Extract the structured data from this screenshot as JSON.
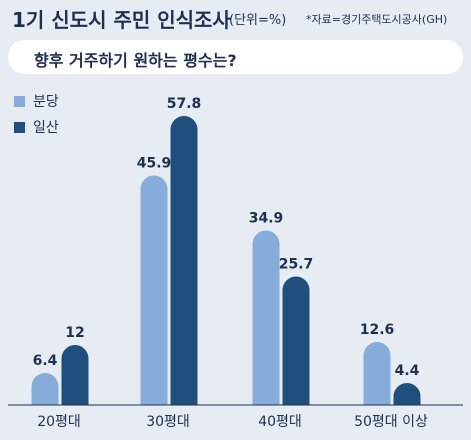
{
  "header": {
    "title": "1기 신도시 주민 인식조사",
    "unit": "(단위=%)",
    "source": "*자료=경기주택도시공사(GH)"
  },
  "question": "향후 거주하기 원하는 평수는?",
  "colors": {
    "background": "#e7ecf3",
    "bundang": "#86acdb",
    "ilsan": "#1f4f7d",
    "text": "#1f2f4f"
  },
  "chart_data": {
    "type": "bar",
    "title": "향후 거주하기 원하는 평수는?",
    "categories": [
      "20평대",
      "30평대",
      "40평대",
      "50평대 이상"
    ],
    "series": [
      {
        "name": "분당",
        "values": [
          6.4,
          45.9,
          34.9,
          12.6
        ]
      },
      {
        "name": "일산",
        "values": [
          12,
          57.8,
          25.7,
          4.4
        ]
      }
    ],
    "value_labels": [
      [
        "6.4",
        "45.9",
        "34.9",
        "12.6"
      ],
      [
        "12",
        "57.8",
        "25.7",
        "4.4"
      ]
    ],
    "ylim": [
      0,
      60
    ],
    "grid": false,
    "legend_position": "top-left"
  }
}
